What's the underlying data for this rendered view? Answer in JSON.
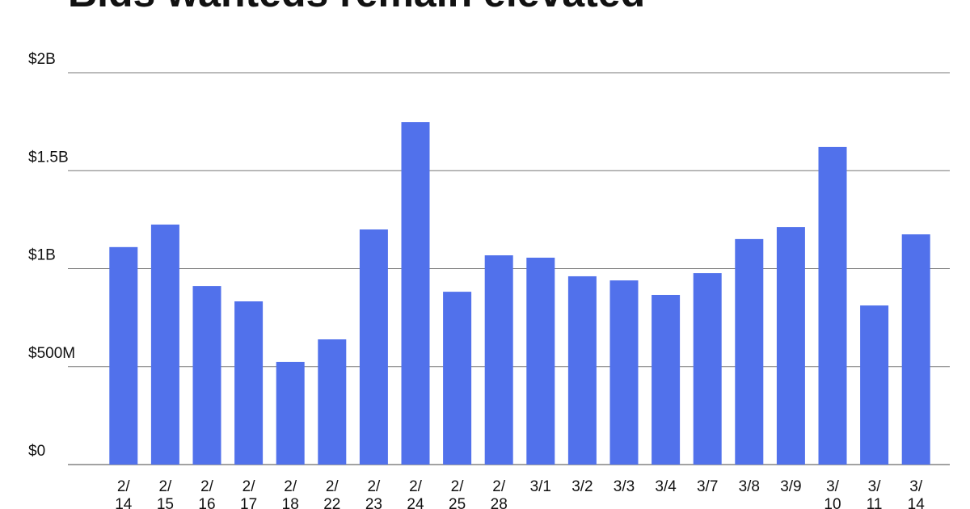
{
  "chart_data": {
    "type": "bar",
    "title": "Bids wanteds remain elevated",
    "categories": [
      "2/14",
      "2/15",
      "2/16",
      "2/17",
      "2/18",
      "2/22",
      "2/23",
      "2/24",
      "2/25",
      "2/28",
      "3/1",
      "3/2",
      "3/3",
      "3/4",
      "3/7",
      "3/8",
      "3/9",
      "3/10",
      "3/11",
      "3/14"
    ],
    "values": [
      1110000000,
      1225000000,
      911000000,
      833000000,
      524000000,
      639000000,
      1200000000,
      1748000000,
      882000000,
      1068000000,
      1056000000,
      961000000,
      940000000,
      866000000,
      977000000,
      1151000000,
      1212000000,
      1621000000,
      812000000,
      1175000000
    ],
    "color": "#5171eb",
    "ylim": [
      0,
      2000000000
    ],
    "yticks": [
      {
        "value": 0,
        "label": "$0"
      },
      {
        "value": 500000000,
        "label": "$500M"
      },
      {
        "value": 1000000000,
        "label": "$1B"
      },
      {
        "value": 1500000000,
        "label": "$1.5B"
      },
      {
        "value": 2000000000,
        "label": "$2B"
      }
    ],
    "grid": true
  }
}
